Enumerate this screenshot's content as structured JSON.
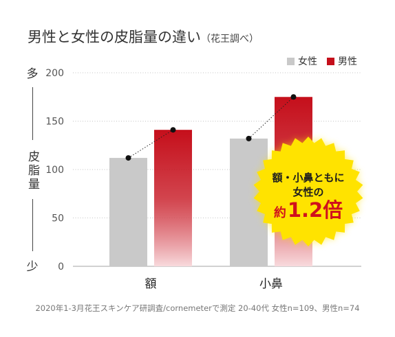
{
  "chart_data": {
    "type": "bar",
    "title": "男性と女性の皮脂量の違い",
    "subtitle": "（花王調べ）",
    "categories": [
      "額",
      "小鼻"
    ],
    "series": [
      {
        "name": "女性",
        "values": [
          112,
          132
        ],
        "color": "#C9C9C9"
      },
      {
        "name": "男性",
        "values": [
          141,
          175
        ],
        "color": "#C50F1B",
        "fade_to": "#F8DADD"
      }
    ],
    "ylim": [
      0,
      200
    ],
    "yticks": [
      200,
      150,
      100,
      50,
      0
    ],
    "ylabel": "皮脂量",
    "ylabel_high": "多",
    "ylabel_low": "少",
    "grid": true,
    "legend_position": "top-right",
    "annotation": {
      "line1": "額・小鼻ともに",
      "line2": "女性の",
      "prefix": "約",
      "value": "1.2倍",
      "badge_color": "#FFE300",
      "emphasis_color": "#D0111C"
    },
    "source_note": "2020年1-3月花王スキンケア研調査/cornemeterで測定 20-40代 女性n=109、男性n=74"
  }
}
